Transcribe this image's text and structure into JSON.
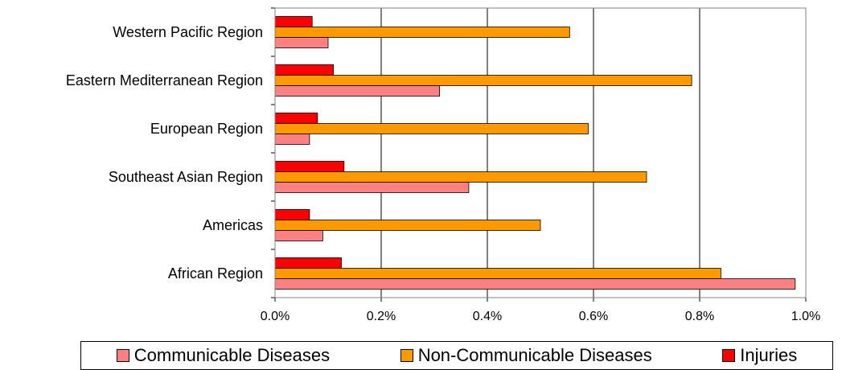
{
  "chart_data": {
    "type": "bar",
    "orientation": "horizontal",
    "categories": [
      "Western Pacific Region",
      "Eastern Mediterranean Region",
      "European Region",
      "Southeast Asian Region",
      "Americas",
      "African Region"
    ],
    "series": [
      {
        "name": "Injuries",
        "color": "#ff0000",
        "values": [
          0.07,
          0.11,
          0.08,
          0.13,
          0.065,
          0.125
        ]
      },
      {
        "name": "Non-Communicable Diseases",
        "color": "#ff9900",
        "values": [
          0.555,
          0.785,
          0.59,
          0.7,
          0.5,
          0.84
        ]
      },
      {
        "name": "Communicable Diseases",
        "color": "#ff8080",
        "values": [
          0.1,
          0.31,
          0.065,
          0.365,
          0.09,
          0.98
        ]
      }
    ],
    "x_ticks": [
      "0.0%",
      "0.2%",
      "0.4%",
      "0.6%",
      "0.8%",
      "1.0%"
    ],
    "xlim": [
      0,
      1.0
    ],
    "grid": "vertical",
    "legend_position": "bottom",
    "legend_order": [
      "Communicable Diseases",
      "Non-Communicable Diseases",
      "Injuries"
    ]
  }
}
